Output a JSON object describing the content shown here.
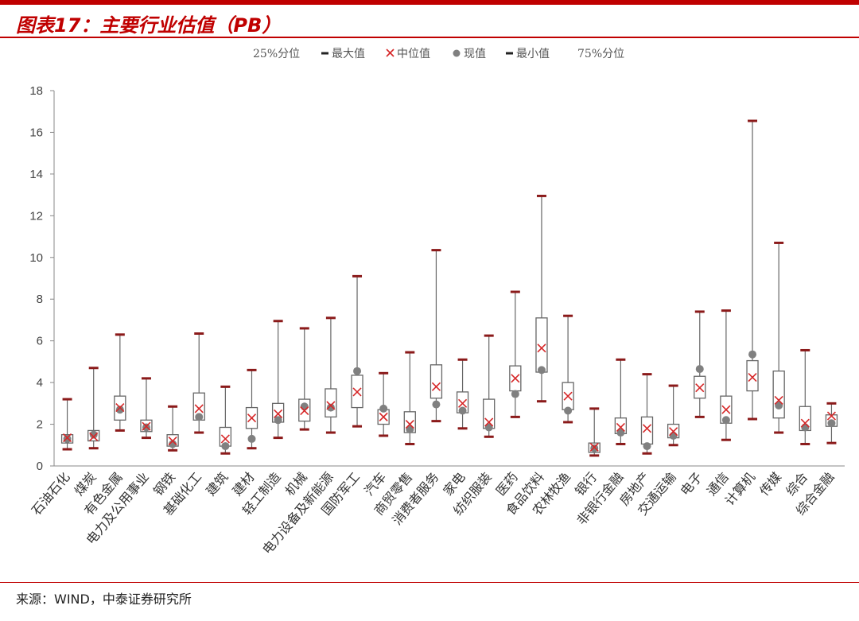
{
  "header": {
    "title": "图表17：主要行业估值（PB）",
    "source": "来源：WIND，中泰证券研究所"
  },
  "chart_data": {
    "type": "boxplot",
    "legend": [
      "25%分位",
      "最大值",
      "中位值",
      "现值",
      "最小值",
      "75%分位"
    ],
    "legend_placement": "top-center",
    "ylim": [
      0,
      18
    ],
    "yticks": [
      0,
      2,
      4,
      6,
      8,
      10,
      12,
      14,
      16,
      18
    ],
    "grid": false,
    "colors": {
      "max_min_marker": "#8b1a1a",
      "median_marker": "#d62728",
      "current_marker": "#808080",
      "box": "#666666"
    },
    "categories": [
      "石油石化",
      "煤炭",
      "有色金属",
      "电力及公用事业",
      "钢铁",
      "基础化工",
      "建筑",
      "建材",
      "轻工制造",
      "机械",
      "电力设备及新能源",
      "国防军工",
      "汽车",
      "商贸零售",
      "消费者服务",
      "家电",
      "纺织服装",
      "医药",
      "食品饮料",
      "农林牧渔",
      "银行",
      "非银行金融",
      "房地产",
      "交通运输",
      "电子",
      "通信",
      "计算机",
      "传媒",
      "综合",
      "综合金融"
    ],
    "series": {
      "max": [
        3.2,
        4.7,
        6.3,
        4.2,
        2.85,
        6.35,
        3.8,
        4.6,
        6.95,
        6.6,
        7.1,
        9.1,
        4.45,
        5.45,
        10.35,
        5.1,
        6.25,
        8.35,
        12.95,
        7.2,
        2.75,
        5.1,
        4.4,
        3.85,
        7.4,
        7.45,
        16.55,
        10.7,
        5.55,
        3.0
      ],
      "q75": [
        1.5,
        1.7,
        3.35,
        2.2,
        1.5,
        3.5,
        1.85,
        2.8,
        3.0,
        3.2,
        3.7,
        4.35,
        2.7,
        2.6,
        4.85,
        3.55,
        3.2,
        4.8,
        7.1,
        4.0,
        1.1,
        2.3,
        2.35,
        2.0,
        4.3,
        3.35,
        5.05,
        4.55,
        2.85,
        2.45
      ],
      "median": [
        1.35,
        1.4,
        2.8,
        1.9,
        1.2,
        2.75,
        1.3,
        2.3,
        2.5,
        2.65,
        2.9,
        3.55,
        2.35,
        2.0,
        3.8,
        3.0,
        2.1,
        4.2,
        5.65,
        3.35,
        0.9,
        1.85,
        1.8,
        1.65,
        3.75,
        2.7,
        4.25,
        3.15,
        2.05,
        2.4
      ],
      "q25": [
        1.1,
        1.2,
        2.2,
        1.65,
        0.95,
        2.2,
        0.95,
        1.8,
        2.1,
        2.15,
        2.35,
        2.8,
        2.0,
        1.6,
        3.25,
        2.55,
        1.8,
        3.6,
        4.5,
        2.7,
        0.65,
        1.55,
        1.05,
        1.35,
        3.25,
        2.05,
        3.6,
        2.3,
        1.7,
        1.9
      ],
      "min": [
        0.8,
        0.85,
        1.7,
        1.35,
        0.75,
        1.6,
        0.6,
        0.85,
        1.35,
        1.75,
        1.6,
        1.9,
        1.45,
        1.05,
        2.15,
        1.8,
        1.4,
        2.35,
        3.1,
        2.1,
        0.5,
        1.05,
        0.6,
        1.0,
        2.35,
        1.25,
        2.25,
        1.6,
        1.05,
        1.1
      ],
      "current": [
        1.3,
        1.5,
        2.7,
        1.85,
        1.05,
        2.35,
        0.95,
        1.3,
        2.2,
        2.85,
        2.8,
        4.55,
        2.75,
        1.75,
        2.95,
        2.65,
        1.85,
        3.45,
        4.6,
        2.65,
        0.85,
        1.6,
        0.95,
        1.45,
        4.65,
        2.2,
        5.35,
        2.9,
        1.85,
        2.05
      ]
    }
  }
}
